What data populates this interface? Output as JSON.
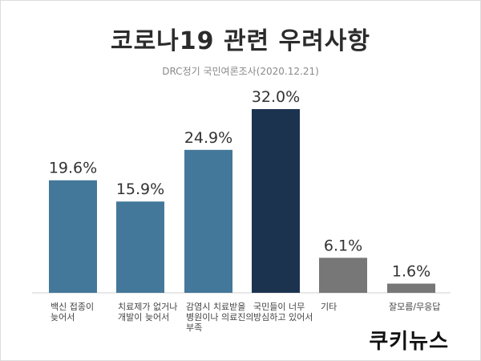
{
  "chart_data": {
    "type": "bar",
    "title": "코로나19 관련 우려사항",
    "subtitle": "DRC정기 국민여론조사(2020.12.21)",
    "categories": [
      [
        "백신 접종이",
        "늦어서"
      ],
      [
        "치료제가 없거나",
        "개발이 늦어서"
      ],
      [
        "감염시 치료받을",
        "병원이나 의료진의",
        "부족"
      ],
      [
        "국민들이 너무",
        "방심하고 있어서"
      ],
      [
        "기타"
      ],
      [
        "잘모름/무응답"
      ]
    ],
    "values": [
      19.6,
      15.9,
      24.9,
      32.0,
      6.1,
      1.6
    ],
    "value_labels": [
      "19.6%",
      "15.9%",
      "24.9%",
      "32.0%",
      "6.1%",
      "1.6%"
    ],
    "colors": [
      "#44789a",
      "#44789a",
      "#44789a",
      "#1c3350",
      "#777777",
      "#777777"
    ],
    "ylim": [
      0,
      32.0
    ],
    "grid": false,
    "xlabel": "",
    "ylabel": ""
  },
  "brand": {
    "logo_text": "쿠키뉴스"
  }
}
